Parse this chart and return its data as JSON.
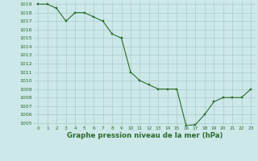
{
  "x": [
    0,
    1,
    2,
    3,
    4,
    5,
    6,
    7,
    8,
    9,
    10,
    11,
    12,
    13,
    14,
    15,
    16,
    17,
    18,
    19,
    20,
    21,
    22,
    23
  ],
  "y": [
    1019,
    1019,
    1018.5,
    1017,
    1018,
    1018,
    1017.5,
    1017,
    1015.5,
    1015,
    1011,
    1010,
    1009.5,
    1009,
    1009,
    1009,
    1004.7,
    1004.8,
    1006,
    1007.5,
    1008,
    1008,
    1008,
    1009
  ],
  "line_color": "#2d6a2d",
  "marker": "s",
  "marker_size": 1.8,
  "bg_color": "#cce8e8",
  "grid_color": "#aacccc",
  "title": "Graphe pression niveau de la mer (hPa)",
  "ylim_min": 1005,
  "ylim_max": 1019,
  "xlim_min": -0.5,
  "xlim_max": 23.5,
  "ytick_step": 1,
  "xtick_labels": [
    "0",
    "1",
    "2",
    "3",
    "4",
    "5",
    "6",
    "7",
    "8",
    "9",
    "10",
    "11",
    "12",
    "13",
    "14",
    "15",
    "16",
    "17",
    "18",
    "19",
    "20",
    "21",
    "22",
    "23"
  ]
}
